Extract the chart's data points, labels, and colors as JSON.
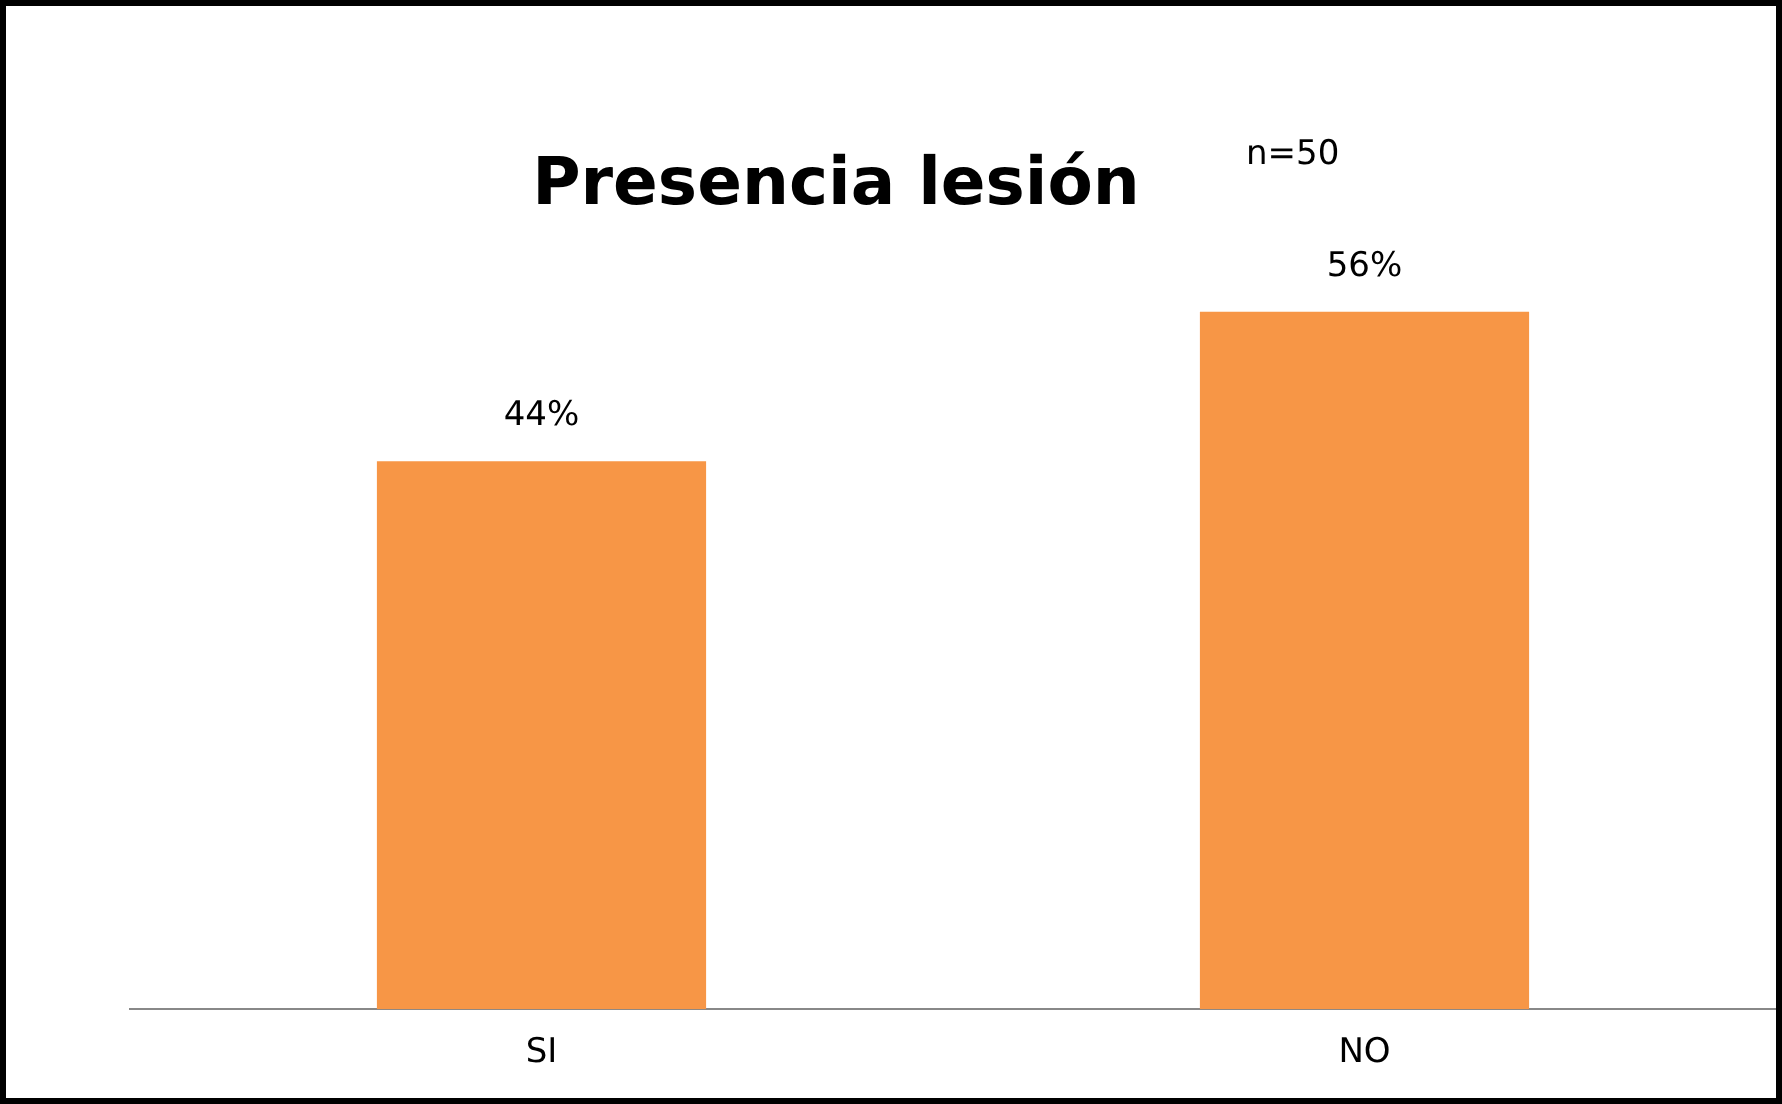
{
  "chart_data": {
    "type": "bar",
    "title": "Presencia lesión",
    "annotations": [
      "n=50"
    ],
    "categories": [
      "SI",
      "NO"
    ],
    "values": [
      44,
      56
    ],
    "color": "#f79646",
    "value_labels": [
      "44%",
      "56%"
    ],
    "tick_labels": "x",
    "grid": false,
    "legend": false
  }
}
